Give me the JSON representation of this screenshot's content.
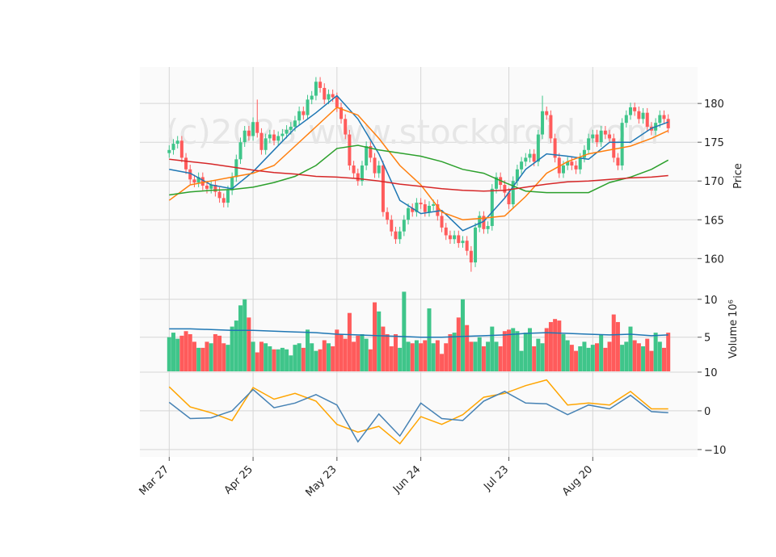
{
  "chart_data": [
    {
      "type": "candlestick",
      "watermark": "(c)2023 www.stockdroid.com",
      "ylabel": "Price",
      "xlim": [
        -7,
        126
      ],
      "xticks": [
        {
          "value": 0,
          "label": "Mar 27"
        },
        {
          "value": 20,
          "label": "Apr 25"
        },
        {
          "value": 40,
          "label": "May 23"
        },
        {
          "value": 60,
          "label": "Jun 24"
        },
        {
          "value": 81,
          "label": "Jul 23"
        },
        {
          "value": 101,
          "label": "Aug 20"
        }
      ],
      "ylim": [
        156.7,
        184.7
      ],
      "yticks": [
        160,
        165,
        170,
        175,
        180
      ],
      "grid": true,
      "up_color": "#3fc58a",
      "down_color": "#ff5b5b",
      "open": [
        173.6,
        174.0,
        174.8,
        175.2,
        173.0,
        171.5,
        170.2,
        169.8,
        170.5,
        169.4,
        169.0,
        169.5,
        168.6,
        167.8,
        167.2,
        168.8,
        170.5,
        172.8,
        175.0,
        176.5,
        175.8,
        177.6,
        176.2,
        174.0,
        175.5,
        176.0,
        175.2,
        175.8,
        176.1,
        176.6,
        177.0,
        177.8,
        179.0,
        178.5,
        180.5,
        181.0,
        182.8,
        182.0,
        180.5,
        181.2,
        180.8,
        179.5,
        178.0,
        176.0,
        172.0,
        171.0,
        170.0,
        172.0,
        174.5,
        173.0,
        171.0,
        172.0,
        166.0,
        165.0,
        163.5,
        162.5,
        163.5,
        165.0,
        166.5,
        166.0,
        167.2,
        167.0,
        166.0,
        166.8,
        167.0,
        165.5,
        164.0,
        163.0,
        162.5,
        163.0,
        162.0,
        162.3,
        161.0,
        159.5,
        164.0,
        165.5,
        163.8,
        164.2,
        169.0,
        170.5,
        169.5,
        168.5,
        167.0,
        170.0,
        171.5,
        172.5,
        173.0,
        173.5,
        172.5,
        176.0,
        179.0,
        178.5,
        175.5,
        173.0,
        171.0,
        172.0,
        172.5,
        172.0,
        171.5,
        173.0,
        174.0,
        175.5,
        176.0,
        175.0,
        176.5,
        176.0,
        175.5,
        173.0,
        172.0,
        177.5,
        178.5,
        179.5,
        179.0,
        178.0,
        178.8,
        177.0,
        176.5,
        177.5,
        178.5,
        178.0
      ],
      "high": [
        174.6,
        175.4,
        175.8,
        175.8,
        173.6,
        172.1,
        170.8,
        171.1,
        171.1,
        170.0,
        170.1,
        170.1,
        169.2,
        168.4,
        169.4,
        171.1,
        173.4,
        175.6,
        177.1,
        177.1,
        178.2,
        180.5,
        176.8,
        176.1,
        176.6,
        176.6,
        176.4,
        176.7,
        177.2,
        177.6,
        178.4,
        179.6,
        179.6,
        181.1,
        181.6,
        183.4,
        183.4,
        182.6,
        181.8,
        181.8,
        181.4,
        180.1,
        178.6,
        176.6,
        172.6,
        171.6,
        172.6,
        175.1,
        175.1,
        173.6,
        172.6,
        172.6,
        166.6,
        165.6,
        164.1,
        164.1,
        165.6,
        167.1,
        167.1,
        167.8,
        167.8,
        167.6,
        167.4,
        167.6,
        167.6,
        166.1,
        164.6,
        163.6,
        163.6,
        163.6,
        162.9,
        162.9,
        161.6,
        164.6,
        166.1,
        166.1,
        164.8,
        169.6,
        171.1,
        171.1,
        170.1,
        169.1,
        170.6,
        172.1,
        173.1,
        173.6,
        174.1,
        174.1,
        176.6,
        181.0,
        179.6,
        179.1,
        176.1,
        173.6,
        172.6,
        173.1,
        173.1,
        172.6,
        173.6,
        174.6,
        176.1,
        176.6,
        176.6,
        177.1,
        177.1,
        176.6,
        176.1,
        173.6,
        178.1,
        179.1,
        180.1,
        180.1,
        179.6,
        179.4,
        179.4,
        177.6,
        178.1,
        179.1,
        179.1,
        178.6
      ],
      "low": [
        173.0,
        173.4,
        174.2,
        172.4,
        170.9,
        169.6,
        169.2,
        169.2,
        168.8,
        168.4,
        168.4,
        168.0,
        167.2,
        166.6,
        166.6,
        168.2,
        169.9,
        172.2,
        174.4,
        175.2,
        175.2,
        175.6,
        173.4,
        173.4,
        174.9,
        174.6,
        174.6,
        175.2,
        175.5,
        176.0,
        176.4,
        177.2,
        177.9,
        177.9,
        179.9,
        180.4,
        181.4,
        179.9,
        179.9,
        180.2,
        178.9,
        177.4,
        175.4,
        171.4,
        170.4,
        169.4,
        169.4,
        171.4,
        172.4,
        170.4,
        170.4,
        165.4,
        164.4,
        162.9,
        161.9,
        161.9,
        162.9,
        164.4,
        165.4,
        165.4,
        166.4,
        165.4,
        165.4,
        166.2,
        164.9,
        163.4,
        162.4,
        161.9,
        161.9,
        161.4,
        161.4,
        160.4,
        158.3,
        158.9,
        163.4,
        163.2,
        163.2,
        163.6,
        168.4,
        168.9,
        167.9,
        166.4,
        166.4,
        169.4,
        170.9,
        171.9,
        172.4,
        171.9,
        171.9,
        175.4,
        177.9,
        174.9,
        172.4,
        170.4,
        170.4,
        171.4,
        171.4,
        170.9,
        170.9,
        172.4,
        173.4,
        174.9,
        174.4,
        174.4,
        175.4,
        174.9,
        172.4,
        171.4,
        171.4,
        176.9,
        177.9,
        178.4,
        177.4,
        177.4,
        176.4,
        175.9,
        175.9,
        176.9,
        177.4,
        176.2
      ],
      "close": [
        174.0,
        174.8,
        175.2,
        173.0,
        171.5,
        170.2,
        169.8,
        170.5,
        169.4,
        169.0,
        169.5,
        168.6,
        167.8,
        167.2,
        168.8,
        170.5,
        172.8,
        175.0,
        176.5,
        175.8,
        177.6,
        176.2,
        174.0,
        175.5,
        176.0,
        175.2,
        175.8,
        176.1,
        176.6,
        177.0,
        177.8,
        179.0,
        178.5,
        180.5,
        181.0,
        182.8,
        182.0,
        180.5,
        181.2,
        180.8,
        179.5,
        178.0,
        176.0,
        172.0,
        171.0,
        170.0,
        172.0,
        174.5,
        173.0,
        171.0,
        172.0,
        166.0,
        165.0,
        163.5,
        162.5,
        163.5,
        165.0,
        166.5,
        166.0,
        167.2,
        167.0,
        166.0,
        166.8,
        167.0,
        165.5,
        164.0,
        163.0,
        162.5,
        163.0,
        162.0,
        162.3,
        161.0,
        159.5,
        164.0,
        165.5,
        163.8,
        164.2,
        169.0,
        170.5,
        169.5,
        168.5,
        167.0,
        170.0,
        171.5,
        172.5,
        173.0,
        173.5,
        172.5,
        176.0,
        179.0,
        178.5,
        175.5,
        173.0,
        171.0,
        172.0,
        172.5,
        172.0,
        171.5,
        173.0,
        174.0,
        175.5,
        176.0,
        175.0,
        176.5,
        176.0,
        175.5,
        173.0,
        172.0,
        177.5,
        178.5,
        179.5,
        179.0,
        178.0,
        178.8,
        177.0,
        176.5,
        177.5,
        178.5,
        178.0,
        176.8
      ],
      "line_x": [
        0,
        5,
        10,
        15,
        20,
        25,
        30,
        35,
        40,
        45,
        50,
        55,
        60,
        65,
        70,
        75,
        80,
        85,
        90,
        95,
        100,
        105,
        110,
        115,
        119
      ],
      "series": [
        {
          "color": "#1f77b4",
          "values": [
            171.5,
            171.0,
            169.5,
            169.0,
            171.2,
            174.0,
            176.8,
            178.8,
            181.0,
            178.0,
            173.5,
            167.5,
            165.8,
            166.2,
            163.6,
            164.8,
            167.8,
            171.5,
            173.5,
            173.2,
            172.8,
            175.0,
            175.0,
            176.8,
            177.6
          ]
        },
        {
          "color": "#ff7f0e",
          "values": [
            167.5,
            169.5,
            170.0,
            170.5,
            171.0,
            172.0,
            174.5,
            177.0,
            179.5,
            178.5,
            175.5,
            172.0,
            169.5,
            166.0,
            165.0,
            165.2,
            165.5,
            168.0,
            171.0,
            172.5,
            173.5,
            174.0,
            174.5,
            175.5,
            176.5
          ]
        },
        {
          "color": "#2ca02c",
          "values": [
            168.2,
            168.6,
            168.8,
            168.9,
            169.2,
            169.8,
            170.6,
            172.0,
            174.2,
            174.6,
            174.0,
            173.6,
            173.2,
            172.5,
            171.5,
            171.0,
            169.8,
            168.7,
            168.5,
            168.5,
            168.5,
            169.8,
            170.5,
            171.5,
            172.7
          ]
        },
        {
          "color": "#d62728",
          "values": [
            172.8,
            172.5,
            172.2,
            171.8,
            171.4,
            171.1,
            170.9,
            170.6,
            170.5,
            170.3,
            170.0,
            169.6,
            169.3,
            169.0,
            168.8,
            168.7,
            168.8,
            169.2,
            169.6,
            169.9,
            170.0,
            170.2,
            170.4,
            170.5,
            170.7
          ]
        }
      ]
    },
    {
      "type": "bar",
      "ylabel": "Volume",
      "multiplier": "10⁶",
      "ylim": [
        0.5,
        12
      ],
      "yticks": [
        5,
        10
      ],
      "grid": true,
      "values": [
        5.0,
        5.6,
        4.8,
        5.2,
        5.8,
        5.4,
        4.4,
        3.6,
        3.6,
        4.4,
        4.2,
        5.4,
        5.2,
        4.2,
        4.0,
        6.4,
        7.2,
        9.2,
        10.0,
        7.6,
        4.4,
        3.0,
        4.4,
        4.2,
        3.8,
        3.4,
        3.4,
        3.6,
        3.4,
        2.6,
        4.0,
        4.2,
        3.6,
        6.0,
        4.2,
        3.2,
        3.4,
        4.6,
        4.2,
        3.8,
        6.0,
        5.4,
        4.8,
        8.2,
        4.4,
        5.2,
        5.4,
        4.8,
        3.4,
        9.6,
        8.4,
        6.4,
        5.4,
        3.8,
        5.4,
        3.6,
        11.0,
        4.4,
        4.2,
        4.6,
        4.2,
        4.6,
        8.8,
        4.2,
        4.6,
        2.8,
        4.2,
        5.4,
        5.6,
        7.6,
        10.0,
        6.6,
        4.4,
        4.4,
        5.0,
        3.8,
        4.4,
        6.4,
        4.4,
        3.8,
        5.8,
        6.0,
        6.2,
        5.8,
        3.2,
        5.6,
        6.2,
        3.8,
        4.8,
        4.2,
        6.2,
        7.0,
        7.4,
        7.2,
        5.4,
        4.6,
        4.0,
        3.2,
        3.8,
        4.4,
        3.6,
        4.0,
        4.2,
        5.4,
        3.6,
        4.4,
        8.0,
        7.0,
        4.0,
        4.4,
        6.4,
        4.6,
        4.2,
        3.8,
        4.8,
        3.2,
        5.6,
        4.4,
        3.6,
        5.6
      ],
      "series": [
        {
          "color": "#1f77b4",
          "values": [
            6.1,
            6.1,
            6.0,
            5.9,
            5.9,
            5.8,
            5.7,
            5.6,
            5.4,
            5.3,
            5.2,
            5.1,
            5.0,
            5.0,
            5.1,
            5.2,
            5.3,
            5.5,
            5.6,
            5.5,
            5.4,
            5.3,
            5.4,
            5.2,
            5.3
          ]
        }
      ]
    },
    {
      "type": "line",
      "ylim": [
        -11.9,
        10.2
      ],
      "yticks": [
        {
          "value": -10,
          "label": "−10"
        },
        0,
        10
      ],
      "grid": true,
      "series": [
        {
          "color": "#ffa500",
          "values": [
            6.2,
            1.0,
            -0.5,
            -2.5,
            6.0,
            3.0,
            4.5,
            2.5,
            -3.5,
            -5.5,
            -4.0,
            -8.5,
            -1.5,
            -3.5,
            -1.0,
            3.5,
            4.5,
            6.5,
            8.0,
            1.5,
            2.0,
            1.5,
            5.0,
            0.5,
            0.5
          ]
        },
        {
          "color": "#4682b4",
          "values": [
            2.2,
            -2.0,
            -1.8,
            0.0,
            5.5,
            0.8,
            2.0,
            4.2,
            1.5,
            -8.0,
            -0.8,
            -6.5,
            2.0,
            -2.0,
            -2.5,
            2.5,
            5.0,
            2.0,
            1.8,
            -1.0,
            1.5,
            0.5,
            4.0,
            -0.2,
            -0.5
          ]
        }
      ]
    }
  ]
}
